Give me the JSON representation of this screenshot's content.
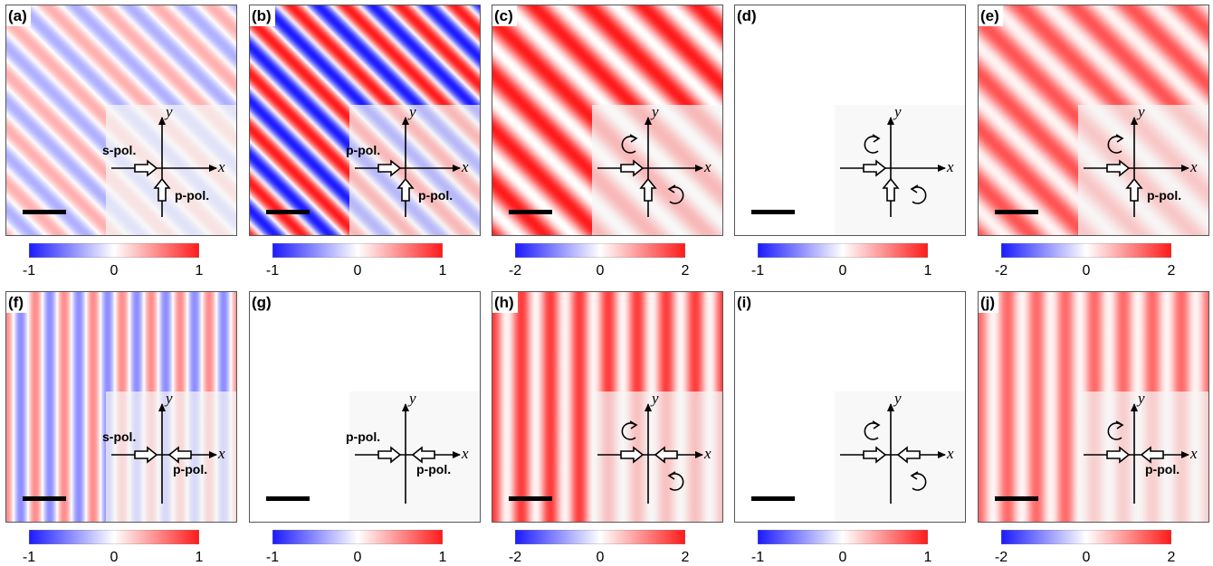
{
  "panels": [
    {
      "label": "(a)",
      "pol_left": "s-pol.",
      "pol_bottom": "p-pol.",
      "ticks": [
        "-1",
        "0",
        "1"
      ],
      "amplitude": 0.35,
      "offset": 0,
      "orientation": "diagonal",
      "arrows": [
        "right",
        "up"
      ],
      "spins": []
    },
    {
      "label": "(b)",
      "pol_left": "p-pol.",
      "pol_bottom": "p-pol.",
      "ticks": [
        "-1",
        "0",
        "1"
      ],
      "amplitude": 1.0,
      "offset": 0,
      "orientation": "diagonal",
      "arrows": [
        "right",
        "up"
      ],
      "spins": []
    },
    {
      "label": "(c)",
      "pol_left": "",
      "pol_bottom": "",
      "ticks": [
        "-2",
        "0",
        "2"
      ],
      "amplitude": 0.5,
      "offset": 0.5,
      "orientation": "diagonal",
      "arrows": [
        "right",
        "up"
      ],
      "spins": [
        "ccw-left",
        "cw-bottom"
      ]
    },
    {
      "label": "(d)",
      "pol_left": "",
      "pol_bottom": "",
      "ticks": [
        "-1",
        "0",
        "1"
      ],
      "amplitude": 0,
      "offset": 0,
      "orientation": "diagonal",
      "arrows": [
        "right",
        "up"
      ],
      "spins": [
        "ccw-left",
        "cw-bottom"
      ]
    },
    {
      "label": "(e)",
      "pol_left": "",
      "pol_bottom": "p-pol.",
      "ticks": [
        "-2",
        "0",
        "2"
      ],
      "amplitude": 0.35,
      "offset": 0.4,
      "orientation": "diagonal",
      "arrows": [
        "right",
        "up"
      ],
      "spins": [
        "ccw-left"
      ]
    },
    {
      "label": "(f)",
      "pol_left": "s-pol.",
      "pol_bottom": "p-pol.",
      "ticks": [
        "-1",
        "0",
        "1"
      ],
      "amplitude": 0.5,
      "offset": 0,
      "orientation": "vertical",
      "arrows": [
        "right",
        "left"
      ],
      "spins": []
    },
    {
      "label": "(g)",
      "pol_left": "p-pol.",
      "pol_bottom": "p-pol.",
      "ticks": [
        "-1",
        "0",
        "1"
      ],
      "amplitude": 0,
      "offset": 0,
      "orientation": "vertical",
      "arrows": [
        "right",
        "left"
      ],
      "spins": []
    },
    {
      "label": "(h)",
      "pol_left": "",
      "pol_bottom": "",
      "ticks": [
        "-2",
        "0",
        "2"
      ],
      "amplitude": 0.4,
      "offset": 0.45,
      "orientation": "vertical",
      "arrows": [
        "right",
        "left"
      ],
      "spins": [
        "ccw-left",
        "cw-bottom"
      ]
    },
    {
      "label": "(i)",
      "pol_left": "",
      "pol_bottom": "",
      "ticks": [
        "-1",
        "0",
        "1"
      ],
      "amplitude": 0,
      "offset": 0,
      "orientation": "vertical",
      "arrows": [
        "right",
        "left"
      ],
      "spins": [
        "ccw-left",
        "cw-bottom"
      ]
    },
    {
      "label": "(j)",
      "pol_left": "",
      "pol_bottom": "p-pol.",
      "ticks": [
        "-2",
        "0",
        "2"
      ],
      "amplitude": 0.3,
      "offset": 0.35,
      "orientation": "vertical",
      "arrows": [
        "right",
        "left"
      ],
      "spins": [
        "ccw-left"
      ]
    }
  ],
  "axis_labels": {
    "x": "x",
    "y": "y"
  },
  "colors": {
    "neg": "#1a1aff",
    "zero": "#ffffff",
    "pos": "#ff1a1a"
  }
}
